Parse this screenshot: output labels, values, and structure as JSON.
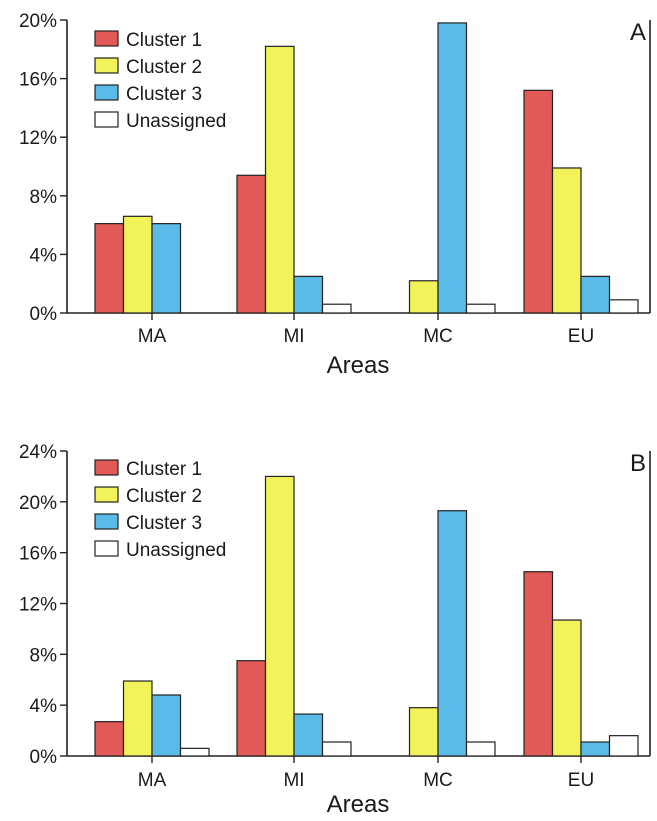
{
  "chart_data": [
    {
      "type": "bar",
      "panel_label": "A",
      "categories": [
        "MA",
        "MI",
        "MC",
        "EU"
      ],
      "series": [
        {
          "name": "Cluster 1",
          "color": "#e15a57",
          "values": [
            6.1,
            9.4,
            0.0,
            15.2
          ]
        },
        {
          "name": "Cluster 2",
          "color": "#f2f25a",
          "values": [
            6.6,
            18.2,
            2.2,
            9.9
          ]
        },
        {
          "name": "Cluster 3",
          "color": "#5bbbe8",
          "values": [
            6.1,
            2.5,
            19.8,
            2.5
          ]
        },
        {
          "name": "Unassigned",
          "color": "#ffffff",
          "values": [
            0.0,
            0.6,
            0.6,
            0.9
          ]
        }
      ],
      "xlabel": "Areas",
      "ylabel": "",
      "ylim": [
        0,
        20
      ],
      "yticks": [
        "0%",
        "4%",
        "8%",
        "12%",
        "16%",
        "20%"
      ],
      "ytick_values": [
        0,
        4,
        8,
        12,
        16,
        20
      ],
      "legend_position": "top-left"
    },
    {
      "type": "bar",
      "panel_label": "B",
      "categories": [
        "MA",
        "MI",
        "MC",
        "EU"
      ],
      "series": [
        {
          "name": "Cluster 1",
          "color": "#e15a57",
          "values": [
            2.7,
            7.5,
            0.0,
            14.5
          ]
        },
        {
          "name": "Cluster 2",
          "color": "#f2f25a",
          "values": [
            5.9,
            22.0,
            3.8,
            10.7
          ]
        },
        {
          "name": "Cluster 3",
          "color": "#5bbbe8",
          "values": [
            4.8,
            3.3,
            19.3,
            1.1
          ]
        },
        {
          "name": "Unassigned",
          "color": "#ffffff",
          "values": [
            0.6,
            1.1,
            1.1,
            1.6
          ]
        }
      ],
      "xlabel": "Areas",
      "ylabel": "",
      "ylim": [
        0,
        24
      ],
      "yticks": [
        "0%",
        "4%",
        "8%",
        "12%",
        "16%",
        "20%",
        "24%"
      ],
      "ytick_values": [
        0,
        4,
        8,
        12,
        16,
        20,
        24
      ],
      "legend_position": "top-left"
    }
  ]
}
